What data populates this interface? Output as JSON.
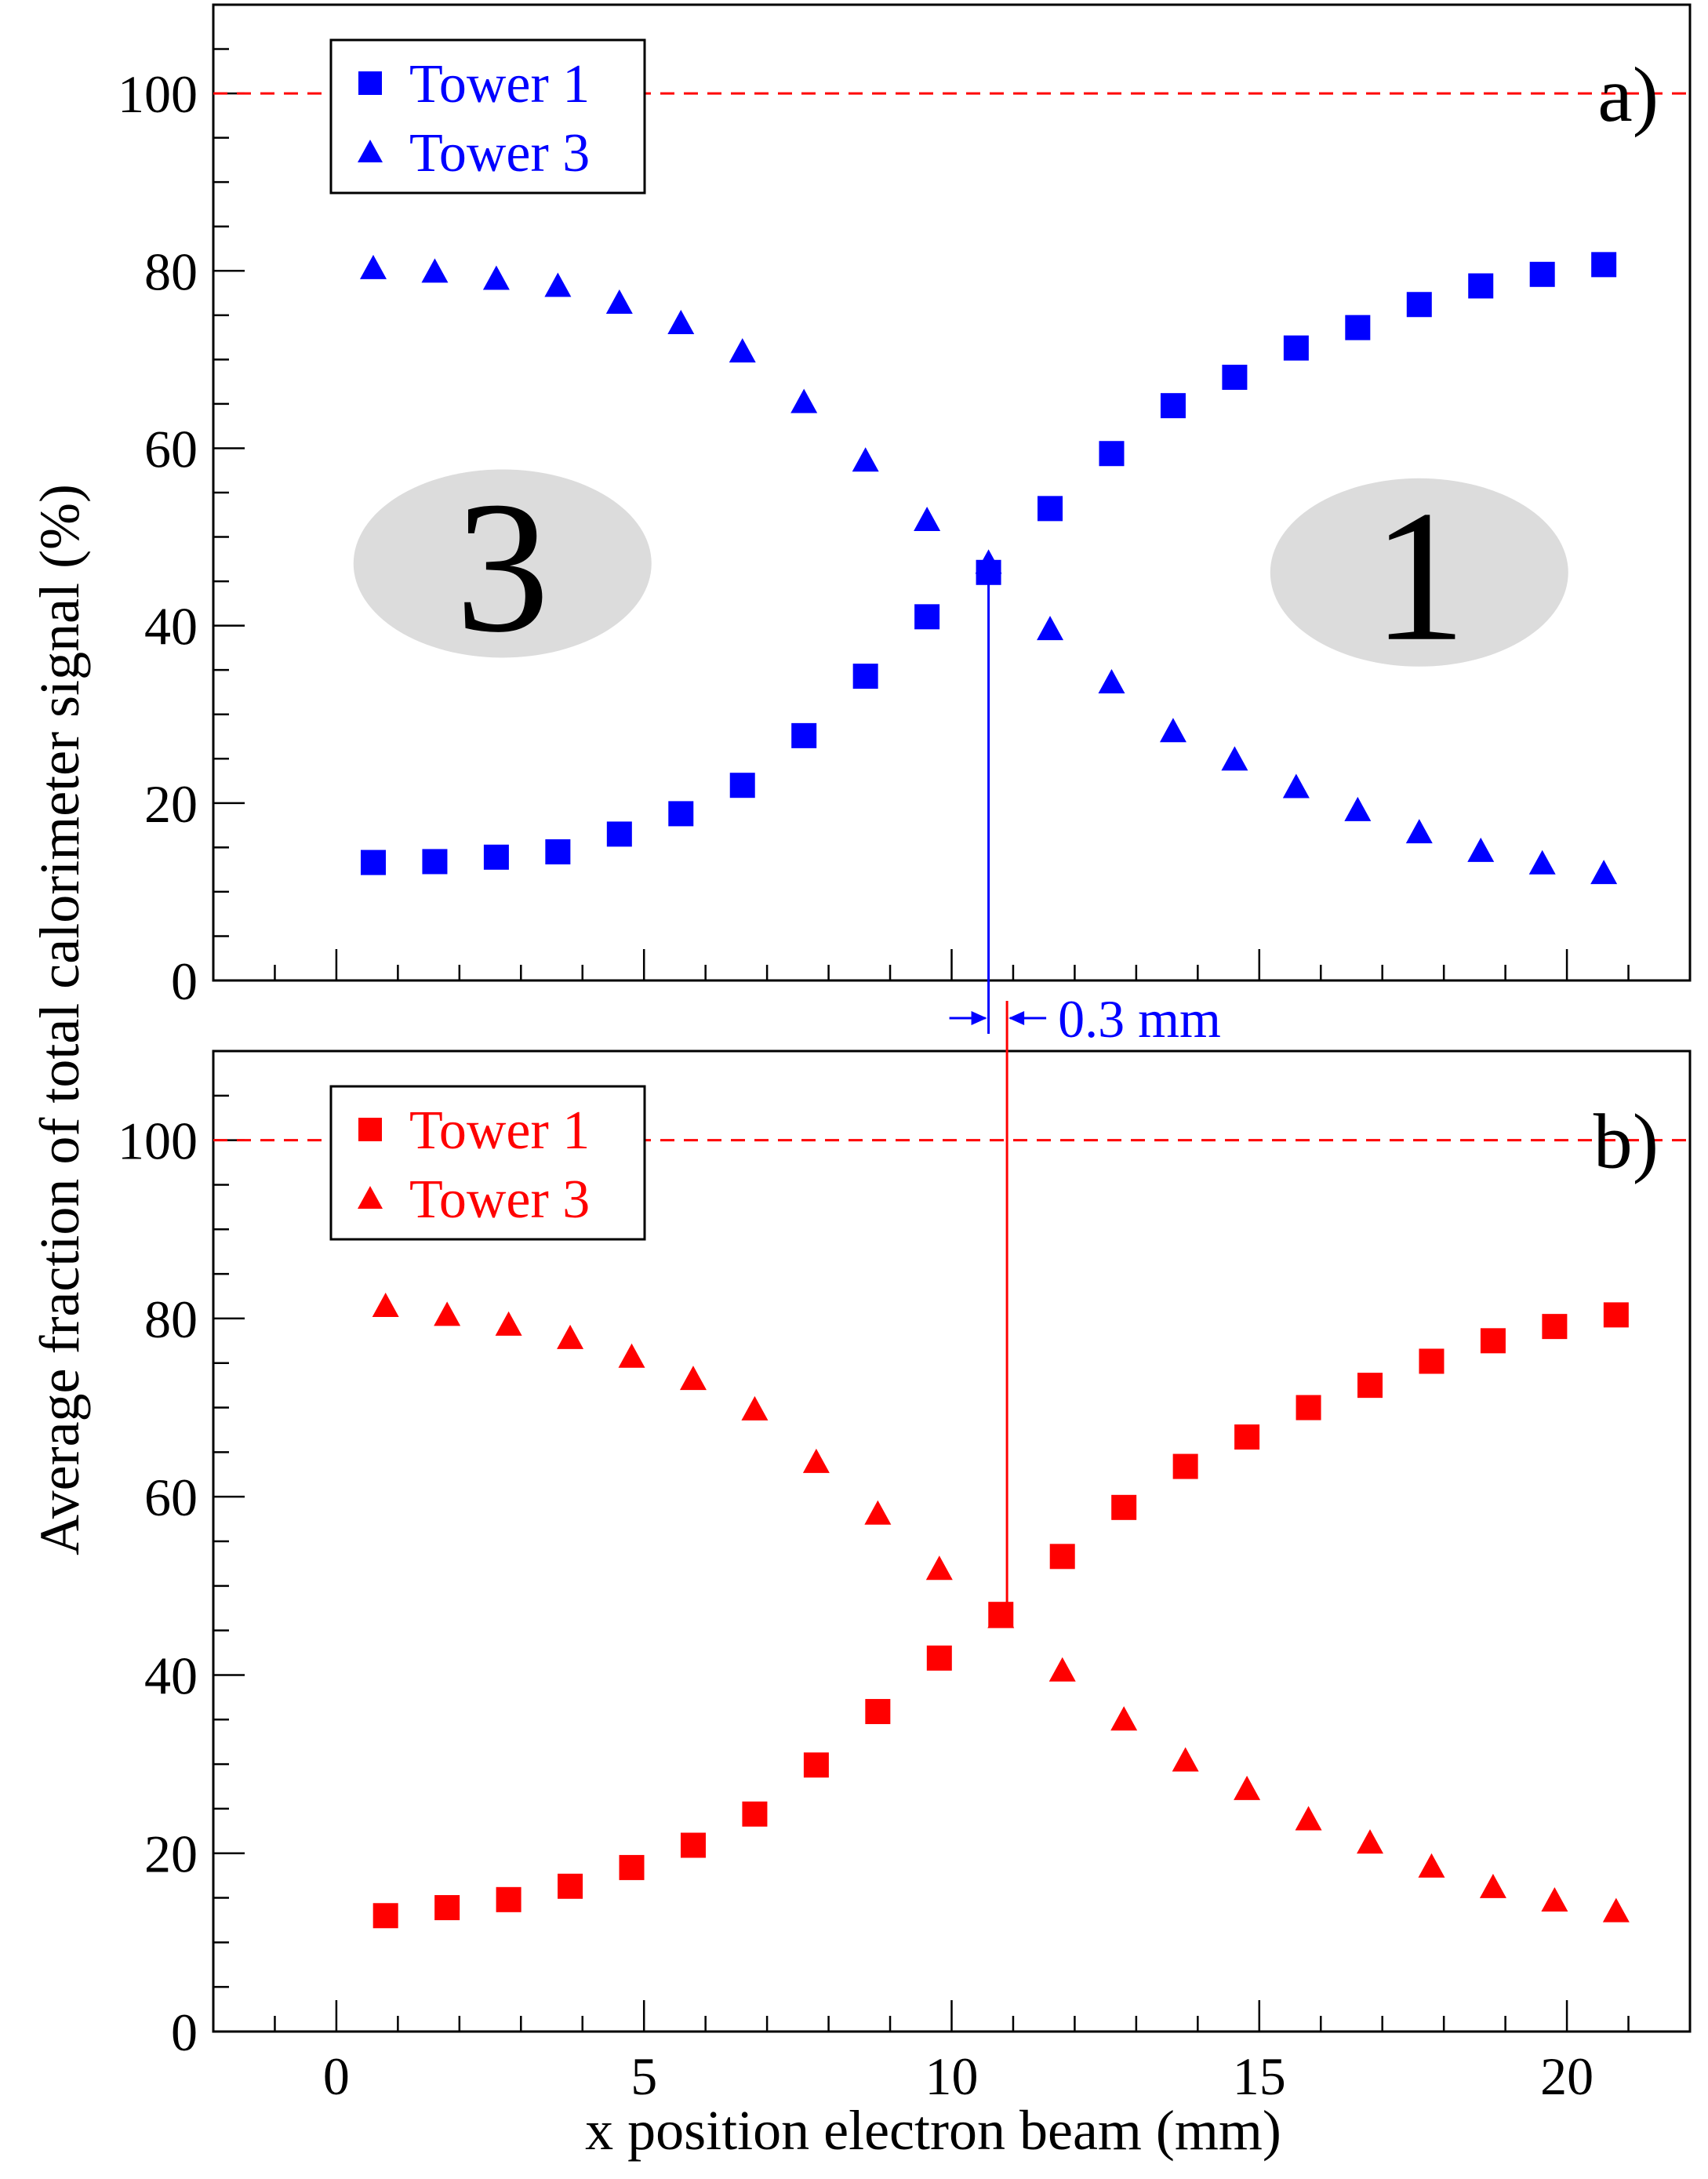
{
  "chart_data": [
    {
      "type": "scatter",
      "panel_label": "a)",
      "xlim": [
        -2,
        22
      ],
      "ylim": [
        0,
        110
      ],
      "reference_line": {
        "y": 100,
        "style": "dashed",
        "color": "#ff0000"
      },
      "legend_placement": "top-left",
      "color": "#0000ff",
      "series": [
        {
          "name": "Tower 1",
          "marker": "square",
          "x": [
            0.6,
            1.6,
            2.6,
            3.6,
            4.6,
            5.6,
            6.6,
            7.6,
            8.6,
            9.6,
            10.6,
            11.6,
            12.6,
            13.6,
            14.6,
            15.6,
            16.6,
            17.6,
            18.6,
            19.6,
            20.6
          ],
          "y": [
            13.3,
            13.4,
            13.9,
            14.5,
            16.5,
            18.8,
            22.0,
            27.6,
            34.3,
            41.0,
            46.0,
            53.2,
            59.4,
            64.8,
            68.0,
            71.3,
            73.6,
            76.2,
            78.3,
            79.6,
            80.7
          ]
        },
        {
          "name": "Tower 3",
          "marker": "triangle",
          "x": [
            0.6,
            1.6,
            2.6,
            3.6,
            4.6,
            5.6,
            6.6,
            7.6,
            8.6,
            9.6,
            10.6,
            11.6,
            12.6,
            13.6,
            14.6,
            15.6,
            16.6,
            17.6,
            18.6,
            19.6,
            20.6
          ],
          "y": [
            80.3,
            79.9,
            79.1,
            78.3,
            76.4,
            74.1,
            70.9,
            65.2,
            58.6,
            51.9,
            47.1,
            39.6,
            33.6,
            28.1,
            24.9,
            21.8,
            19.2,
            16.7,
            14.6,
            13.2,
            12.1
          ]
        }
      ],
      "annotations": [
        {
          "text": "3",
          "x": 2.7,
          "y": 47,
          "shape": "ellipse"
        },
        {
          "text": "1",
          "x": 17.6,
          "y": 46,
          "shape": "ellipse"
        }
      ],
      "marker_line_x": 10.6
    },
    {
      "type": "scatter",
      "panel_label": "b)",
      "xlim": [
        -2,
        22
      ],
      "ylim": [
        0,
        110
      ],
      "reference_line": {
        "y": 100,
        "style": "dashed",
        "color": "#ff0000"
      },
      "legend_placement": "top-left",
      "color": "#ff0000",
      "series": [
        {
          "name": "Tower 1",
          "marker": "square",
          "x": [
            0.8,
            1.8,
            2.8,
            3.8,
            4.8,
            5.8,
            6.8,
            7.8,
            8.8,
            9.8,
            10.8,
            11.8,
            12.8,
            13.8,
            14.8,
            15.8,
            16.8,
            17.8,
            18.8,
            19.8,
            20.8
          ],
          "y": [
            13.0,
            13.9,
            14.8,
            16.3,
            18.4,
            20.9,
            24.4,
            29.9,
            35.9,
            41.9,
            46.8,
            53.3,
            58.8,
            63.4,
            66.7,
            70.0,
            72.5,
            75.2,
            77.5,
            79.1,
            80.4
          ]
        },
        {
          "name": "Tower 3",
          "marker": "triangle",
          "x": [
            0.8,
            1.8,
            2.8,
            3.8,
            4.8,
            5.8,
            6.8,
            7.8,
            8.8,
            9.8,
            10.8,
            11.8,
            12.8,
            13.8,
            14.8,
            15.8,
            16.8,
            17.8,
            18.8,
            19.8,
            20.8
          ],
          "y": [
            81.4,
            80.4,
            79.3,
            77.8,
            75.7,
            73.2,
            69.8,
            63.9,
            58.1,
            51.9,
            46.5,
            40.5,
            35.0,
            30.4,
            27.2,
            23.8,
            21.2,
            18.5,
            16.2,
            14.7,
            13.5
          ]
        }
      ],
      "marker_line_x": 10.9
    }
  ],
  "shared": {
    "xlabel": "x position electron beam (mm)",
    "ylabel": "Average fraction of total calorimeter signal (%)",
    "x_ticks": [
      0,
      5,
      10,
      15,
      20
    ],
    "y_ticks": [
      0,
      20,
      40,
      60,
      80,
      100
    ],
    "offset_annotation": "0.3 mm"
  }
}
